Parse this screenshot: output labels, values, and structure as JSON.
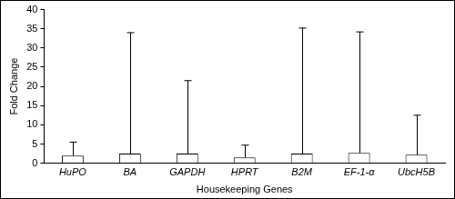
{
  "chart_data": {
    "type": "bar",
    "x_label": "Housekeeping Genes",
    "y_label": "Fold Change",
    "categories": [
      "HuPO",
      "BA",
      "GAPDH",
      "HPRT",
      "B2M",
      "EF-1-α",
      "UbcH5B"
    ],
    "values": [
      2,
      2.5,
      2.5,
      1.5,
      2.5,
      2.7,
      2.2
    ],
    "error_upper": [
      5.5,
      34,
      21.5,
      4.7,
      35.2,
      34.2,
      12.5
    ],
    "color": "#ffffff",
    "ylim": [
      0,
      40
    ],
    "yticks": [
      0,
      5,
      10,
      15,
      20,
      25,
      30,
      35,
      40
    ],
    "grid": false
  }
}
